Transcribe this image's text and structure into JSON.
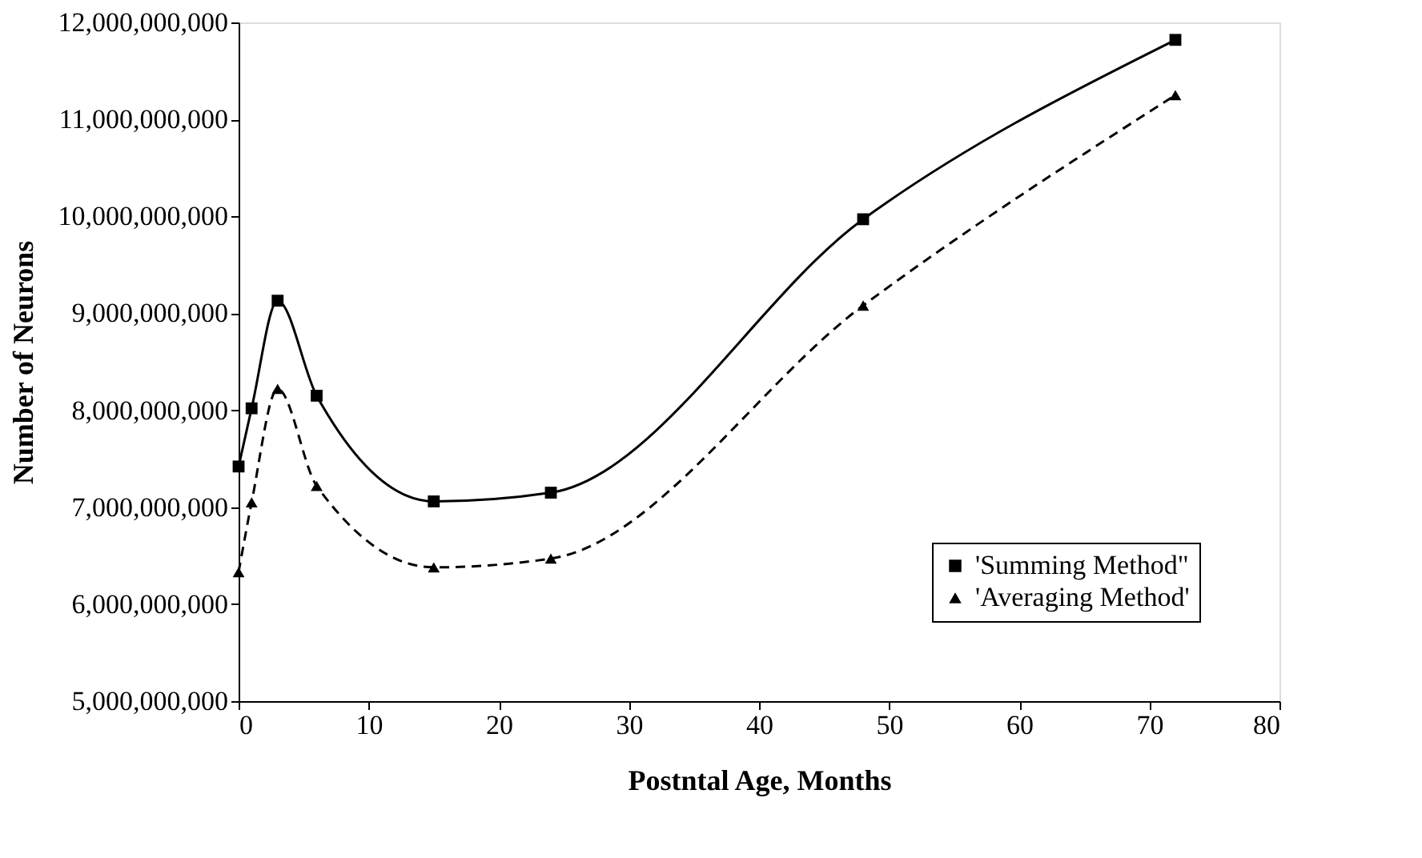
{
  "chart_data": {
    "type": "line",
    "xlabel": "Postntal Age, Months",
    "ylabel": "Number of Neurons",
    "x": [
      0,
      1,
      3,
      6,
      15,
      24,
      48,
      72
    ],
    "series": [
      {
        "name": "'Summing Method\"",
        "color": "#000000",
        "marker": "square",
        "line_style": "solid",
        "values": [
          7420000000,
          8020000000,
          9130000000,
          8150000000,
          7060000000,
          7150000000,
          9970000000,
          11820000000
        ]
      },
      {
        "name": "'Averaging Method'",
        "color": "#000000",
        "marker": "triangle",
        "line_style": "dashed",
        "values": [
          6330000000,
          7050000000,
          8220000000,
          7220000000,
          6380000000,
          6470000000,
          9080000000,
          11250000000
        ]
      }
    ],
    "xlim": [
      0,
      80
    ],
    "xticks": [
      0,
      10,
      20,
      30,
      40,
      50,
      60,
      70,
      80
    ],
    "ylim": [
      5000000000,
      12000000000
    ],
    "yticks": [
      {
        "value": 5000000000,
        "label": "5,000,000,000"
      },
      {
        "value": 6000000000,
        "label": "6,000,000,000"
      },
      {
        "value": 7000000000,
        "label": "7,000,000,000"
      },
      {
        "value": 8000000000,
        "label": "8,000,000,000"
      },
      {
        "value": 9000000000,
        "label": "9,000,000,000"
      },
      {
        "value": 10000000000,
        "label": "10,000,000,000"
      },
      {
        "value": 11000000000,
        "label": "11,000,000,000"
      },
      {
        "value": 12000000000,
        "label": "12,000,000,000"
      }
    ],
    "grid": false,
    "legend": "bottom right"
  }
}
